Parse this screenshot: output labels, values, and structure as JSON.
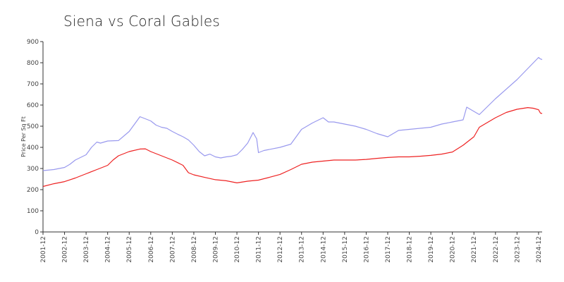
{
  "chart_data": {
    "type": "line",
    "title": "Siena vs Coral Gables",
    "ylabel": "Price Per Sq Ft",
    "xlabel": "",
    "ylim": [
      0,
      900
    ],
    "yticks": [
      0,
      100,
      200,
      300,
      400,
      500,
      600,
      700,
      800,
      900
    ],
    "xlim": [
      "2001-12",
      "2025-02"
    ],
    "xticks": [
      "2001-12",
      "2002-12",
      "2003-12",
      "2004-12",
      "2005-12",
      "2006-12",
      "2007-12",
      "2008-12",
      "2009-12",
      "2010-12",
      "2011-12",
      "2012-12",
      "2013-12",
      "2014-12",
      "2015-12",
      "2016-12",
      "2017-12",
      "2018-12",
      "2019-12",
      "2020-12",
      "2021-12",
      "2022-12",
      "2023-12",
      "2024-12"
    ],
    "grid": false,
    "legend": "none",
    "series": [
      {
        "color": "#9999ee",
        "points": [
          [
            "2001-12",
            290
          ],
          [
            "2002-06",
            295
          ],
          [
            "2002-12",
            305
          ],
          [
            "2003-03",
            320
          ],
          [
            "2003-06",
            340
          ],
          [
            "2003-12",
            365
          ],
          [
            "2004-03",
            400
          ],
          [
            "2004-06",
            425
          ],
          [
            "2004-08",
            420
          ],
          [
            "2004-12",
            430
          ],
          [
            "2005-06",
            432
          ],
          [
            "2005-12",
            475
          ],
          [
            "2006-03",
            510
          ],
          [
            "2006-06",
            545
          ],
          [
            "2006-09",
            535
          ],
          [
            "2006-12",
            525
          ],
          [
            "2007-03",
            505
          ],
          [
            "2007-06",
            495
          ],
          [
            "2007-09",
            490
          ],
          [
            "2007-12",
            475
          ],
          [
            "2008-03",
            462
          ],
          [
            "2008-06",
            450
          ],
          [
            "2008-09",
            435
          ],
          [
            "2008-12",
            410
          ],
          [
            "2009-03",
            380
          ],
          [
            "2009-06",
            360
          ],
          [
            "2009-09",
            368
          ],
          [
            "2009-12",
            355
          ],
          [
            "2010-03",
            350
          ],
          [
            "2010-06",
            355
          ],
          [
            "2010-09",
            358
          ],
          [
            "2010-12",
            365
          ],
          [
            "2011-03",
            390
          ],
          [
            "2011-06",
            420
          ],
          [
            "2011-09",
            470
          ],
          [
            "2011-11",
            440
          ],
          [
            "2011-12",
            375
          ],
          [
            "2012-03",
            385
          ],
          [
            "2012-12",
            400
          ],
          [
            "2013-06",
            415
          ],
          [
            "2013-12",
            485
          ],
          [
            "2014-06",
            515
          ],
          [
            "2014-12",
            540
          ],
          [
            "2015-03",
            520
          ],
          [
            "2015-06",
            520
          ],
          [
            "2015-12",
            510
          ],
          [
            "2016-06",
            500
          ],
          [
            "2016-12",
            485
          ],
          [
            "2017-06",
            465
          ],
          [
            "2017-12",
            450
          ],
          [
            "2018-06",
            480
          ],
          [
            "2018-12",
            485
          ],
          [
            "2019-06",
            490
          ],
          [
            "2019-12",
            495
          ],
          [
            "2020-06",
            510
          ],
          [
            "2020-12",
            520
          ],
          [
            "2021-06",
            530
          ],
          [
            "2021-08",
            590
          ],
          [
            "2021-12",
            570
          ],
          [
            "2022-03",
            555
          ],
          [
            "2022-12",
            630
          ],
          [
            "2023-12",
            720
          ],
          [
            "2024-12",
            825
          ],
          [
            "2025-01",
            818
          ],
          [
            "2025-02",
            815
          ]
        ]
      },
      {
        "color": "#ee2222",
        "points": [
          [
            "2001-12",
            215
          ],
          [
            "2002-06",
            228
          ],
          [
            "2002-12",
            238
          ],
          [
            "2003-06",
            255
          ],
          [
            "2003-12",
            275
          ],
          [
            "2004-06",
            295
          ],
          [
            "2004-12",
            315
          ],
          [
            "2005-03",
            340
          ],
          [
            "2005-06",
            360
          ],
          [
            "2005-12",
            380
          ],
          [
            "2006-06",
            392
          ],
          [
            "2006-09",
            393
          ],
          [
            "2006-12",
            380
          ],
          [
            "2007-06",
            360
          ],
          [
            "2007-12",
            340
          ],
          [
            "2008-06",
            315
          ],
          [
            "2008-09",
            280
          ],
          [
            "2008-12",
            270
          ],
          [
            "2009-06",
            258
          ],
          [
            "2009-12",
            247
          ],
          [
            "2010-06",
            242
          ],
          [
            "2010-12",
            232
          ],
          [
            "2011-06",
            240
          ],
          [
            "2011-12",
            245
          ],
          [
            "2012-06",
            258
          ],
          [
            "2012-12",
            272
          ],
          [
            "2013-06",
            295
          ],
          [
            "2013-12",
            320
          ],
          [
            "2014-06",
            330
          ],
          [
            "2014-12",
            335
          ],
          [
            "2015-06",
            340
          ],
          [
            "2015-12",
            340
          ],
          [
            "2016-06",
            340
          ],
          [
            "2016-12",
            343
          ],
          [
            "2017-06",
            348
          ],
          [
            "2017-12",
            352
          ],
          [
            "2018-06",
            355
          ],
          [
            "2018-12",
            355
          ],
          [
            "2019-06",
            358
          ],
          [
            "2019-12",
            362
          ],
          [
            "2020-06",
            368
          ],
          [
            "2020-12",
            378
          ],
          [
            "2021-06",
            410
          ],
          [
            "2021-12",
            450
          ],
          [
            "2022-03",
            495
          ],
          [
            "2022-06",
            510
          ],
          [
            "2022-12",
            540
          ],
          [
            "2023-06",
            565
          ],
          [
            "2023-12",
            580
          ],
          [
            "2024-06",
            588
          ],
          [
            "2024-09",
            585
          ],
          [
            "2024-12",
            578
          ],
          [
            "2025-01",
            562
          ],
          [
            "2025-02",
            560
          ]
        ]
      }
    ]
  }
}
